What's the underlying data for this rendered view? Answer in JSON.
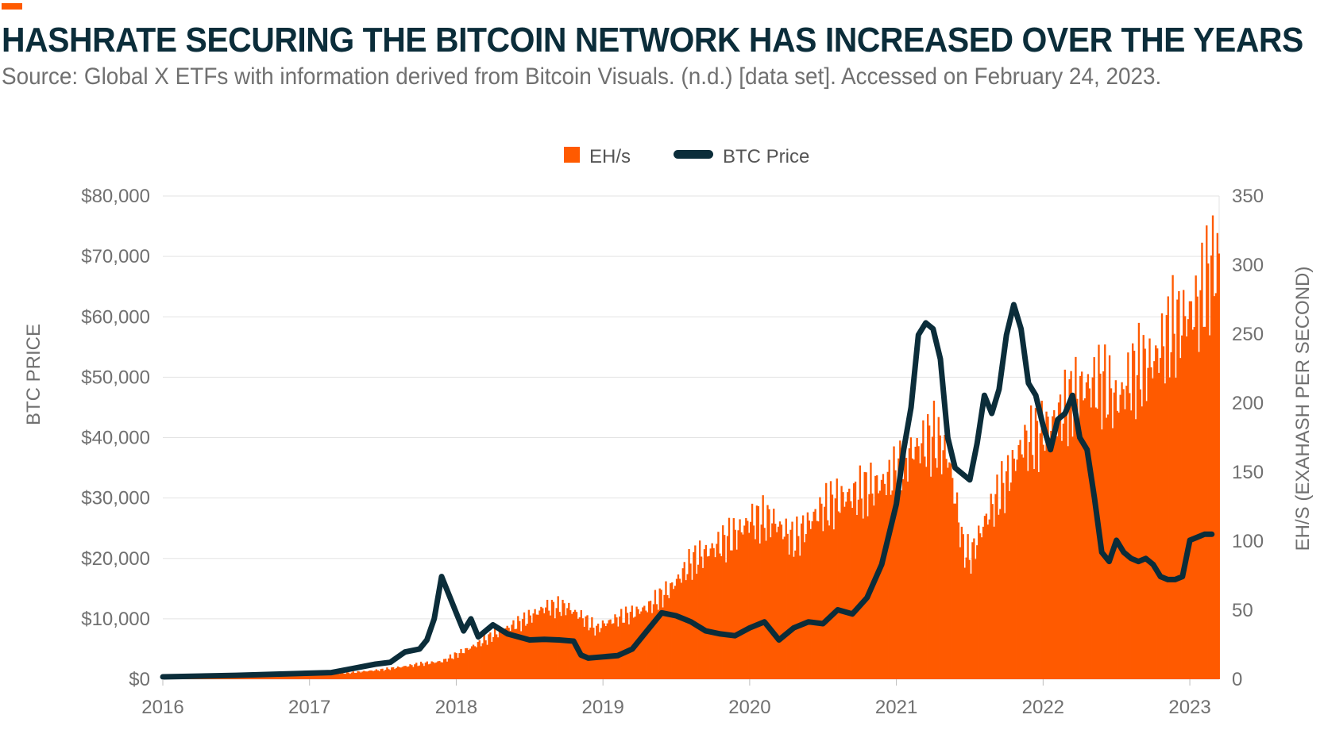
{
  "header": {
    "title": "HASHRATE SECURING THE BITCOIN NETWORK HAS INCREASED OVER THE YEARS",
    "source": "Source: Global X ETFs with information derived from Bitcoin Visuals. (n.d.) [data set]. Accessed on February 24, 2023."
  },
  "colors": {
    "accent": "#ff5a00",
    "line": "#0b2d3a",
    "grid": "#e3e3e3",
    "text": "#707070"
  },
  "chart_data": {
    "type": "bar",
    "title": "HASHRATE SECURING THE BITCOIN NETWORK HAS INCREASED OVER THE YEARS",
    "legend": {
      "position": "top-center",
      "entries": [
        "EH/s",
        "BTC Price"
      ]
    },
    "x_ticks": [
      "2016",
      "2017",
      "2018",
      "2019",
      "2020",
      "2021",
      "2022",
      "2023"
    ],
    "x_range": [
      2016.0,
      2023.2
    ],
    "y_left": {
      "label": "BTC PRICE",
      "range": [
        0,
        80000
      ],
      "ticks": [
        "$0",
        "$10,000",
        "$20,000",
        "$30,000",
        "$40,000",
        "$50,000",
        "$60,000",
        "$70,000",
        "$80,000"
      ]
    },
    "y_right": {
      "label": "EH/S (EXAHASH PER SECOND)",
      "range": [
        0,
        350
      ],
      "ticks": [
        "0",
        "50",
        "100",
        "150",
        "200",
        "250",
        "300",
        "350"
      ]
    },
    "grid": true,
    "series": [
      {
        "name": "EH/s",
        "type": "bar",
        "axis": "right",
        "x": [
          2016.0,
          2016.25,
          2016.5,
          2016.75,
          2017.0,
          2017.25,
          2017.5,
          2017.75,
          2017.9,
          2018.0,
          2018.15,
          2018.3,
          2018.45,
          2018.6,
          2018.75,
          2018.85,
          2018.95,
          2019.0,
          2019.15,
          2019.3,
          2019.45,
          2019.6,
          2019.75,
          2019.9,
          2020.0,
          2020.15,
          2020.3,
          2020.45,
          2020.6,
          2020.75,
          2020.9,
          2021.0,
          2021.1,
          2021.25,
          2021.35,
          2021.45,
          2021.5,
          2021.6,
          2021.75,
          2021.85,
          2021.95,
          2022.0,
          2022.1,
          2022.25,
          2022.4,
          2022.5,
          2022.6,
          2022.75,
          2022.85,
          2022.95,
          2023.05,
          2023.15
        ],
        "values": [
          1,
          1.5,
          1.8,
          2.2,
          3,
          4.5,
          7,
          11,
          13,
          18,
          26,
          35,
          42,
          52,
          52,
          45,
          36,
          40,
          46,
          52,
          65,
          85,
          95,
          105,
          115,
          115,
          100,
          120,
          130,
          135,
          142,
          150,
          165,
          175,
          160,
          95,
          88,
          115,
          145,
          170,
          175,
          180,
          190,
          210,
          215,
          200,
          220,
          230,
          250,
          260,
          270,
          300
        ]
      },
      {
        "name": "BTC Price",
        "type": "line",
        "axis": "left",
        "x": [
          2016.0,
          2016.5,
          2017.0,
          2017.15,
          2017.3,
          2017.45,
          2017.55,
          2017.65,
          2017.75,
          2017.8,
          2017.85,
          2017.9,
          2017.95,
          2018.0,
          2018.05,
          2018.1,
          2018.15,
          2018.25,
          2018.35,
          2018.5,
          2018.6,
          2018.7,
          2018.8,
          2018.85,
          2018.9,
          2019.0,
          2019.1,
          2019.2,
          2019.3,
          2019.4,
          2019.5,
          2019.55,
          2019.6,
          2019.7,
          2019.8,
          2019.9,
          2020.0,
          2020.1,
          2020.2,
          2020.3,
          2020.4,
          2020.5,
          2020.6,
          2020.7,
          2020.8,
          2020.9,
          2021.0,
          2021.05,
          2021.1,
          2021.15,
          2021.2,
          2021.25,
          2021.3,
          2021.35,
          2021.4,
          2021.45,
          2021.5,
          2021.55,
          2021.6,
          2021.65,
          2021.7,
          2021.75,
          2021.8,
          2021.85,
          2021.9,
          2021.95,
          2022.0,
          2022.05,
          2022.1,
          2022.15,
          2022.2,
          2022.25,
          2022.3,
          2022.35,
          2022.4,
          2022.45,
          2022.5,
          2022.55,
          2022.6,
          2022.65,
          2022.7,
          2022.75,
          2022.8,
          2022.85,
          2022.9,
          2022.95,
          2023.0,
          2023.05,
          2023.1,
          2023.15
        ],
        "values": [
          400,
          650,
          1000,
          1100,
          1800,
          2500,
          2800,
          4500,
          5000,
          6500,
          10000,
          17000,
          14000,
          11000,
          8000,
          10000,
          7000,
          9000,
          7500,
          6500,
          6600,
          6500,
          6300,
          4000,
          3500,
          3700,
          3900,
          5000,
          8000,
          11000,
          10500,
          10000,
          9500,
          8000,
          7500,
          7200,
          8500,
          9500,
          6500,
          8500,
          9500,
          9200,
          11500,
          10800,
          13500,
          19000,
          29000,
          38000,
          45000,
          57000,
          59000,
          58000,
          53000,
          40000,
          35000,
          34000,
          33000,
          39000,
          47000,
          44000,
          48000,
          57000,
          62000,
          58000,
          49000,
          47000,
          42000,
          38000,
          43000,
          44000,
          47000,
          40000,
          38000,
          30000,
          21000,
          19500,
          23000,
          21000,
          20000,
          19500,
          20000,
          19000,
          17000,
          16500,
          16500,
          17000,
          23000,
          23500,
          24000,
          24000
        ]
      }
    ]
  }
}
